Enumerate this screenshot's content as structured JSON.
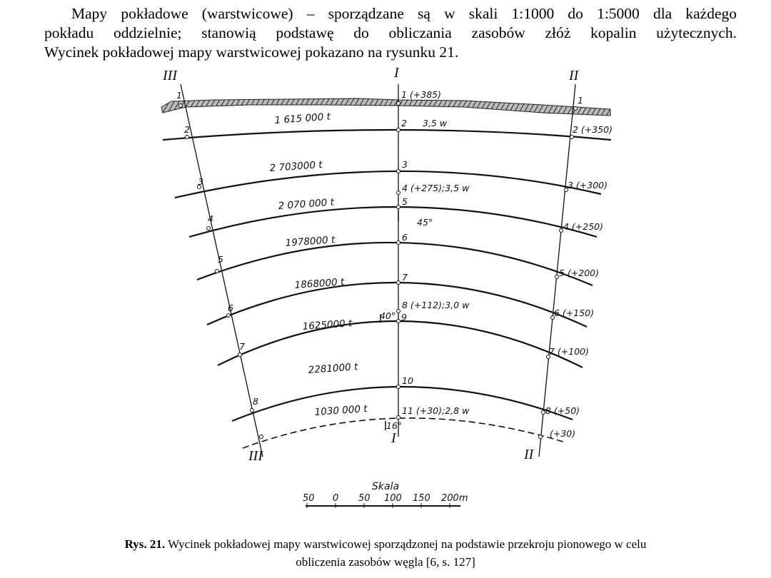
{
  "paragraph": {
    "lines": [
      "Mapy pokładowe (warstwicowe) – sporządzane są w skali 1:1000 do 1:5000 dla każdego",
      "pokładu oddzielnie; stanowią podstawę do obliczania zasobów złóż kopalin użytecznych.",
      "Wycinek pokładowej mapy warstwicowej pokazano na rysunku 21."
    ]
  },
  "figure": {
    "sections_top": [
      "III",
      "I",
      "II"
    ],
    "sections_bottom": [
      "III",
      "I",
      "II"
    ],
    "section_III_points": [
      "1",
      "2",
      "3",
      "4",
      "5",
      "6",
      "7",
      "8"
    ],
    "section_I_points": [
      "1 (+385)",
      "2",
      "3,5 w",
      "3",
      "4 (+275);3,5 w",
      "5",
      "45°",
      "6",
      "7",
      "8 (+112);3,0 w",
      "40°",
      "9",
      "10",
      "11 (+30);2,8 w",
      "16°"
    ],
    "section_II_points": [
      "1",
      "2 (+350)",
      "3 (+300)",
      "4 (+250)",
      "5 (+200)",
      "6 (+150)",
      "7 (+100)",
      "8 (+50)",
      "(+30)"
    ],
    "tonnages": [
      "1 615 000 t",
      "2 703000 t",
      "2 070 000 t",
      "1978000 t",
      "1868000 t",
      "1625000 t",
      "2281000 t",
      "1030 000 t"
    ],
    "scale": {
      "title": "Skala",
      "ticks": [
        "50",
        "0",
        "50",
        "100",
        "150",
        "200m"
      ]
    }
  },
  "caption": {
    "label": "Rys. 21.",
    "lines": [
      "Wycinek pokładowej mapy warstwicowej sporządzonej na podstawie przekroju pionowego w celu",
      "obliczenia zasobów węgla [6, s. 127]"
    ]
  }
}
